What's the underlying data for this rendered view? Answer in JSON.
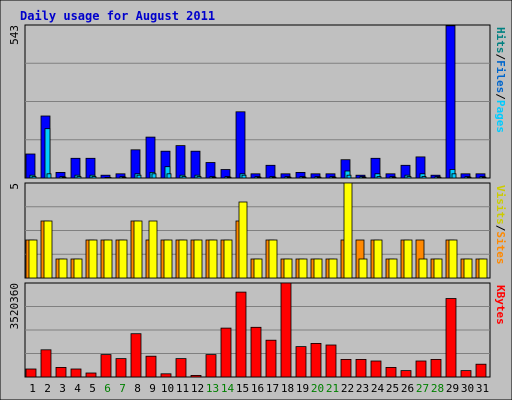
{
  "colors": {
    "background": "#c0c0c0",
    "hits": "#0000ff",
    "files": "#00ccff",
    "pages": "#00ccff",
    "visits": "#ffff00",
    "sites": "#ff8800",
    "kbytes": "#ff0000",
    "title": "#0000cc",
    "weekend": "#008000",
    "grid": "#808080"
  },
  "chart_data": {
    "type": "bar",
    "title": "Daily usage for August 2011",
    "categories": [
      "1",
      "2",
      "3",
      "4",
      "5",
      "6",
      "7",
      "8",
      "9",
      "10",
      "11",
      "12",
      "13",
      "14",
      "15",
      "16",
      "17",
      "18",
      "19",
      "20",
      "21",
      "22",
      "23",
      "24",
      "25",
      "26",
      "27",
      "28",
      "29",
      "30",
      "31"
    ],
    "weekend_days": [
      "6",
      "7",
      "13",
      "14",
      "20",
      "21",
      "27",
      "28"
    ],
    "grid": true,
    "panels": [
      {
        "id": "top",
        "max_label": "543",
        "ylim": [
          0,
          543
        ],
        "legend": [
          {
            "text": "Hits",
            "color": "#008080"
          },
          {
            "text": "/",
            "color": "#000000"
          },
          {
            "text": "Files",
            "color": "#0066cc"
          },
          {
            "text": "/",
            "color": "#000000"
          },
          {
            "text": "Pages",
            "color": "#00ccff"
          }
        ],
        "series": [
          {
            "name": "Hits",
            "color": "#0000ff",
            "values": [
              85,
              220,
              20,
              70,
              70,
              10,
              15,
              100,
              145,
              95,
              115,
              95,
              55,
              30,
              235,
              15,
              45,
              15,
              20,
              15,
              15,
              65,
              10,
              70,
              15,
              45,
              75,
              10,
              540,
              15,
              15
            ]
          },
          {
            "name": "Files",
            "color": "#00ccff",
            "values": [
              10,
              175,
              5,
              10,
              10,
              2,
              5,
              15,
              20,
              40,
              10,
              10,
              5,
              5,
              15,
              5,
              5,
              5,
              5,
              5,
              5,
              25,
              5,
              15,
              5,
              10,
              15,
              5,
              30,
              5,
              5
            ]
          },
          {
            "name": "Pages",
            "color": "#00ccff",
            "values": [
              5,
              15,
              3,
              5,
              5,
              2,
              3,
              10,
              15,
              15,
              5,
              5,
              3,
              3,
              10,
              3,
              3,
              3,
              3,
              3,
              3,
              10,
              3,
              5,
              3,
              5,
              5,
              3,
              15,
              3,
              3
            ]
          }
        ]
      },
      {
        "id": "middle",
        "max_label": "5",
        "ylim": [
          0,
          5
        ],
        "legend": [
          {
            "text": "Visits",
            "color": "#cccc00"
          },
          {
            "text": "/",
            "color": "#000000"
          },
          {
            "text": "Sites",
            "color": "#ff8800"
          }
        ],
        "series": [
          {
            "name": "Sites",
            "color": "#ff8800",
            "values": [
              2,
              3,
              1,
              1,
              2,
              2,
              2,
              3,
              2,
              2,
              2,
              2,
              2,
              2,
              3,
              1,
              2,
              1,
              1,
              1,
              1,
              2,
              2,
              2,
              1,
              2,
              2,
              1,
              2,
              1,
              1
            ]
          },
          {
            "name": "Visits",
            "color": "#ffff00",
            "values": [
              2,
              3,
              1,
              1,
              2,
              2,
              2,
              3,
              3,
              2,
              2,
              2,
              2,
              2,
              4,
              1,
              2,
              1,
              1,
              1,
              1,
              5,
              1,
              2,
              1,
              2,
              1,
              1,
              2,
              1,
              1
            ]
          }
        ]
      },
      {
        "id": "bottom",
        "max_label": "3520360",
        "ylim": [
          0,
          3520360
        ],
        "legend": [
          {
            "text": "KBytes",
            "color": "#ff0000"
          }
        ],
        "series": [
          {
            "name": "KBytes",
            "color": "#ff0000",
            "values": [
              300000,
              1020000,
              360000,
              300000,
              150000,
              840000,
              690000,
              1620000,
              780000,
              120000,
              690000,
              60000,
              840000,
              1830000,
              3180000,
              1860000,
              1380000,
              3520360,
              1140000,
              1260000,
              1200000,
              660000,
              660000,
              600000,
              360000,
              240000,
              600000,
              660000,
              2940000,
              240000,
              480000
            ]
          }
        ]
      }
    ]
  }
}
